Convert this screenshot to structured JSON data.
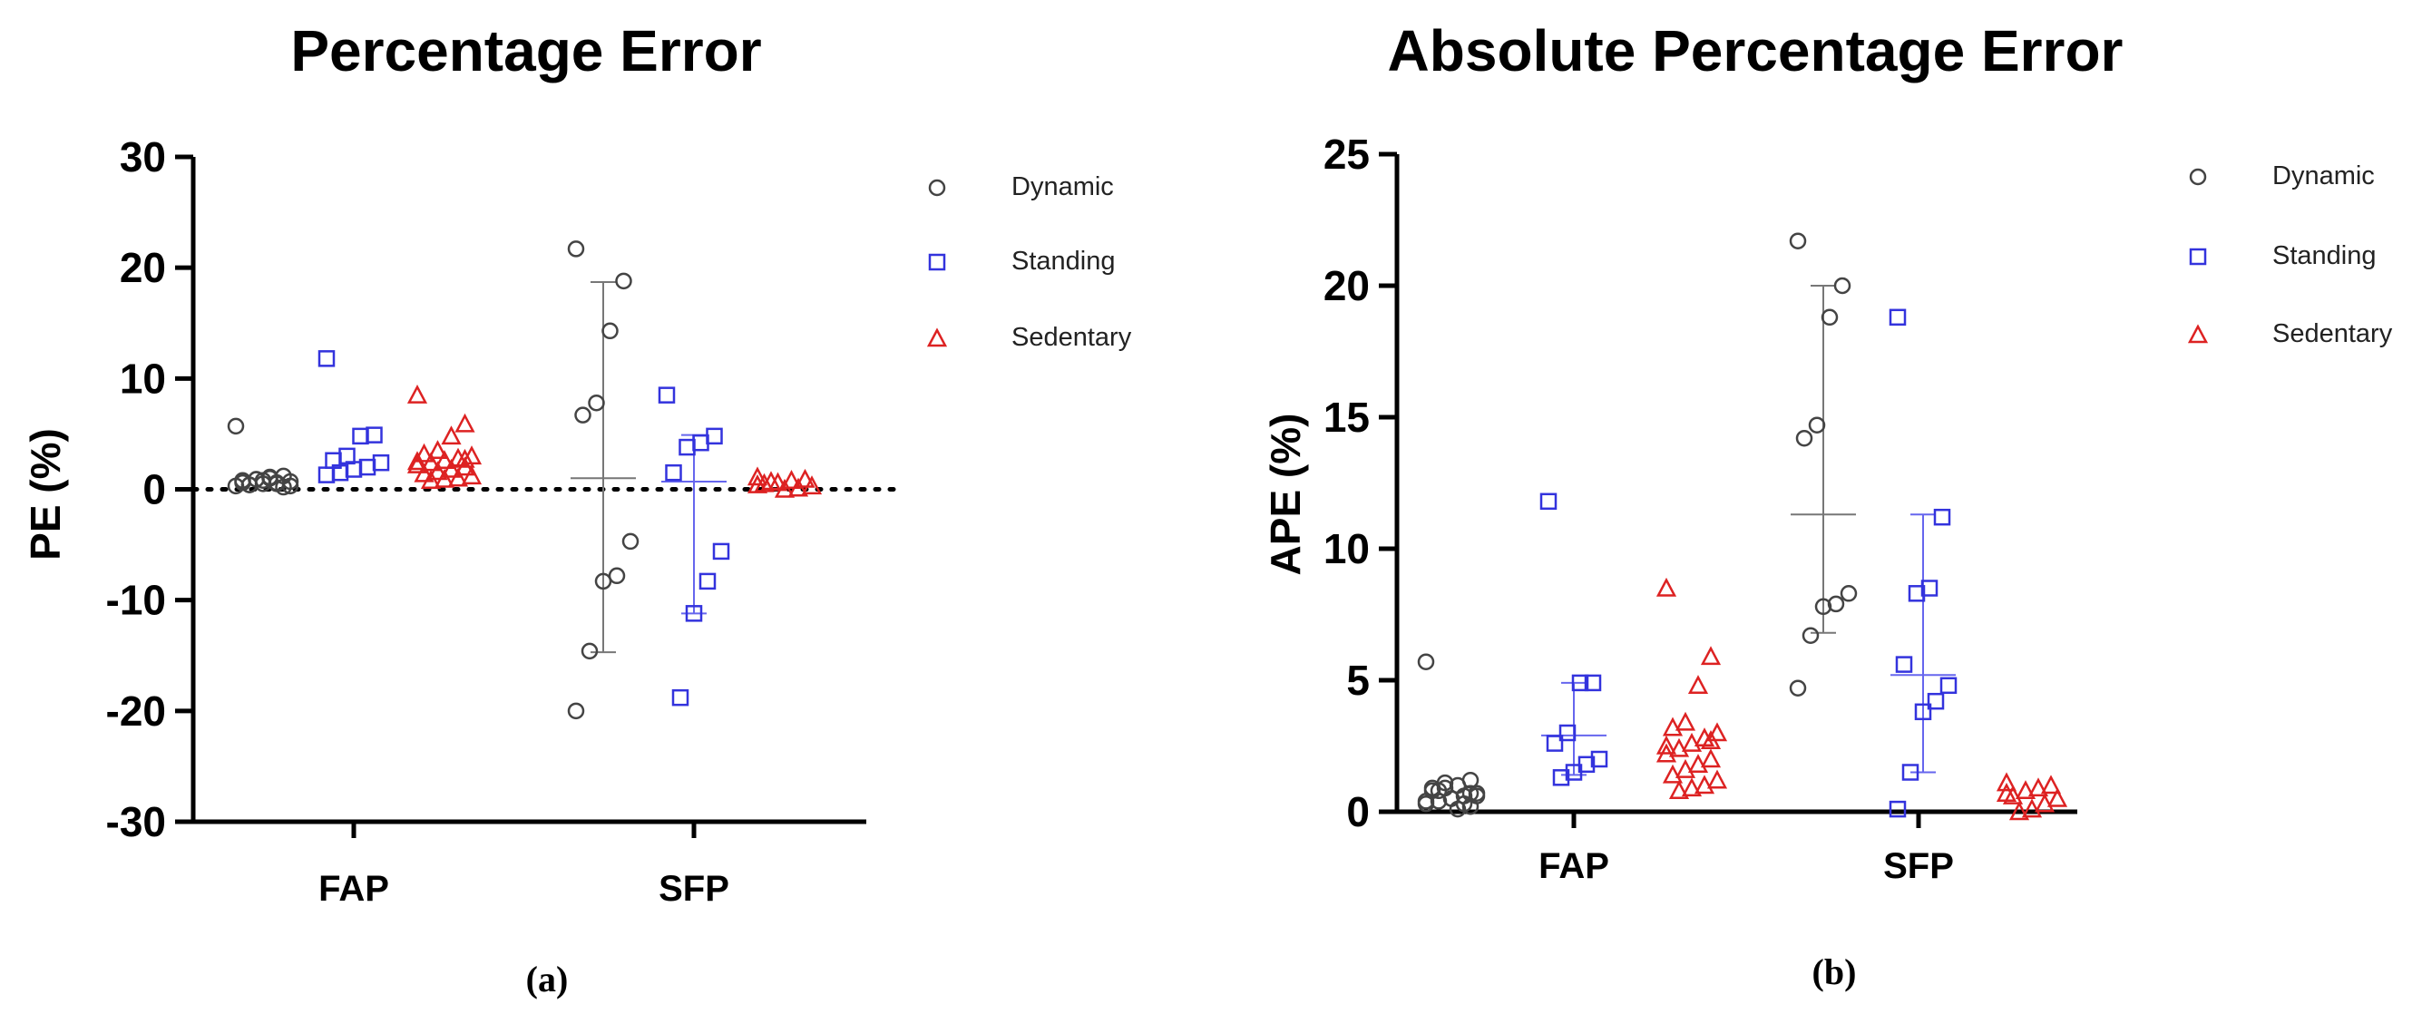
{
  "chart_data": [
    {
      "type": "scatter",
      "title": "Percentage Error",
      "ylabel": "PE (%)",
      "xlabel": "",
      "ylim": [
        -30,
        30
      ],
      "yticks": [
        30,
        20,
        10,
        0,
        -10,
        -20,
        -30
      ],
      "categories": [
        "FAP",
        "SFP"
      ],
      "zero_line": "dotted",
      "legend_position": "right",
      "subplot_label": "(a)",
      "series": [
        {
          "name": "Dynamic",
          "marker": "circle",
          "color": "#444444",
          "FAP": [
            5.7,
            1.2,
            1.0,
            0.9,
            0.8,
            0.7,
            0.6,
            0.5,
            0.4,
            0.3,
            0.2,
            1.1,
            0.9,
            0.6,
            0.3,
            0.5,
            0.8,
            0.4
          ],
          "SFP": [
            21.7,
            18.8,
            14.3,
            7.8,
            6.7,
            -4.7,
            -7.8,
            -8.3,
            -14.6,
            -20.0
          ],
          "SFP_mean": 1.0,
          "SFP_sd_upper": 18.7,
          "SFP_sd_lower": -14.7
        },
        {
          "name": "Standing",
          "marker": "square",
          "color": "#3333dd",
          "FAP": [
            11.8,
            4.9,
            4.8,
            3.0,
            2.6,
            2.4,
            2.0,
            1.8,
            1.5,
            1.3
          ],
          "SFP": [
            8.5,
            4.8,
            4.2,
            3.8,
            1.5,
            -5.6,
            -8.3,
            -11.2,
            -18.8
          ],
          "SFP_mean": 0.7,
          "SFP_sd_upper": 4.9,
          "SFP_sd_lower": -11.2
        },
        {
          "name": "Sedentary",
          "marker": "triangle",
          "color": "#dd2222",
          "FAP": [
            8.5,
            5.9,
            4.8,
            3.5,
            3.2,
            3.0,
            2.8,
            2.6,
            2.4,
            2.2,
            2.0,
            1.8,
            1.6,
            1.4,
            1.2,
            1.0,
            0.9,
            0.8,
            2.5,
            2.7
          ],
          "SFP": [
            1.1,
            0.9,
            0.8,
            0.6,
            0.5,
            0.3,
            0.1,
            0.0,
            0.7,
            0.4
          ]
        }
      ]
    },
    {
      "type": "scatter",
      "title": "Absolute Percentage Error",
      "ylabel": "APE (%)",
      "xlabel": "",
      "ylim": [
        0,
        25
      ],
      "yticks": [
        25,
        20,
        15,
        10,
        5,
        0
      ],
      "categories": [
        "FAP",
        "SFP"
      ],
      "legend_position": "right",
      "subplot_label": "(b)",
      "series": [
        {
          "name": "Dynamic",
          "marker": "circle",
          "color": "#444444",
          "FAP": [
            5.7,
            1.2,
            1.0,
            0.9,
            0.8,
            0.7,
            0.6,
            0.5,
            0.4,
            0.3,
            0.2,
            0.1,
            1.1,
            0.9,
            0.6,
            0.3,
            0.5,
            0.8,
            0.4,
            0.7
          ],
          "SFP": [
            21.7,
            20.0,
            18.8,
            14.7,
            14.2,
            8.3,
            7.9,
            7.8,
            6.7,
            4.7
          ],
          "SFP_mean": 11.3,
          "SFP_sd_upper": 20.0,
          "SFP_sd_lower": 6.8
        },
        {
          "name": "Standing",
          "marker": "square",
          "color": "#3333dd",
          "FAP": [
            11.8,
            4.9,
            4.9,
            3.0,
            2.6,
            2.0,
            1.8,
            1.5,
            1.3
          ],
          "SFP": [
            18.8,
            11.2,
            8.5,
            8.3,
            5.6,
            4.8,
            4.2,
            3.8,
            1.5,
            0.1
          ],
          "FAP_mean": 2.9,
          "FAP_sd_upper": 4.9,
          "FAP_sd_lower": 1.4,
          "SFP_mean": 5.2,
          "SFP_sd_upper": 11.3,
          "SFP_sd_lower": 1.5
        },
        {
          "name": "Sedentary",
          "marker": "triangle",
          "color": "#dd2222",
          "FAP": [
            8.5,
            5.9,
            4.8,
            3.4,
            3.2,
            3.0,
            2.8,
            2.6,
            2.4,
            2.2,
            2.0,
            1.8,
            1.6,
            1.4,
            1.2,
            1.0,
            0.9,
            0.8,
            2.5,
            2.7
          ],
          "SFP": [
            1.1,
            1.0,
            0.9,
            0.8,
            0.6,
            0.5,
            0.3,
            0.1,
            0.0,
            0.7
          ]
        }
      ]
    }
  ]
}
